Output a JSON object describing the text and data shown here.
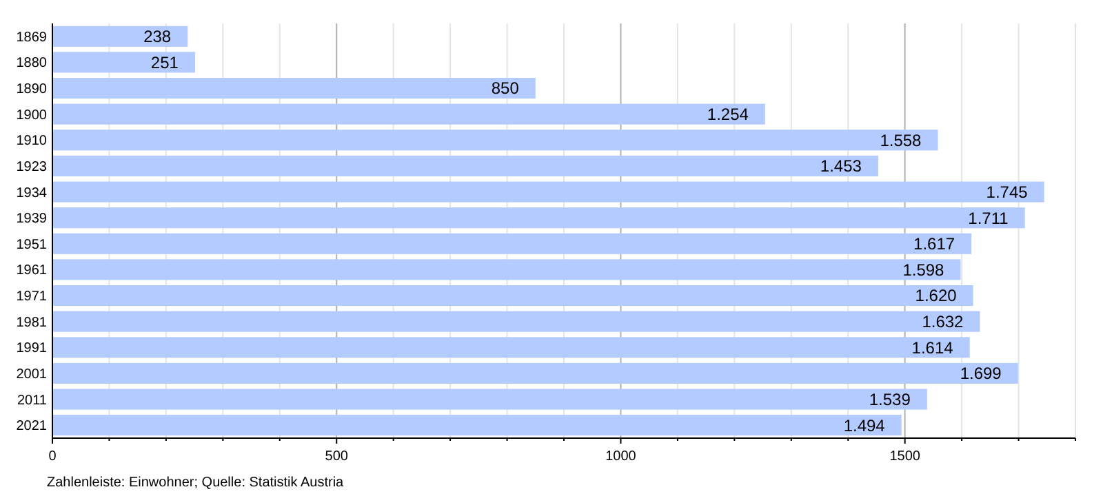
{
  "chart_data": {
    "type": "bar",
    "orientation": "horizontal",
    "categories": [
      "1869",
      "1880",
      "1890",
      "1900",
      "1910",
      "1923",
      "1934",
      "1939",
      "1951",
      "1961",
      "1971",
      "1981",
      "1991",
      "2001",
      "2011",
      "2021"
    ],
    "values": [
      238,
      251,
      850,
      1254,
      1558,
      1453,
      1745,
      1711,
      1617,
      1598,
      1620,
      1632,
      1614,
      1699,
      1539,
      1494
    ],
    "value_labels": [
      "238",
      "251",
      "850",
      "1.254",
      "1.558",
      "1.453",
      "1.745",
      "1.711",
      "1.617",
      "1.598",
      "1.620",
      "1.632",
      "1.614",
      "1.699",
      "1.539",
      "1.494"
    ],
    "color": "#b3cbff",
    "xlim": [
      0,
      1800
    ],
    "xticks": [
      0,
      {
        "value": 100,
        "label": null
      },
      {
        "value": 200,
        "label": null
      },
      {
        "value": 300,
        "label": null
      },
      {
        "value": 400,
        "label": null
      },
      500,
      {
        "value": 600,
        "label": null
      },
      {
        "value": 700,
        "label": null
      },
      {
        "value": 800,
        "label": null
      },
      {
        "value": 900,
        "label": null
      },
      1000,
      {
        "value": 1100,
        "label": null
      },
      {
        "value": 1200,
        "label": null
      },
      {
        "value": 1300,
        "label": null
      },
      {
        "value": 1400,
        "label": null
      },
      1500,
      {
        "value": 1600,
        "label": null
      },
      {
        "value": 1700,
        "label": null
      },
      {
        "value": 1800,
        "label": null
      }
    ],
    "grid": "x",
    "annotations": [
      "Zahlenleiste: Einwohner; Quelle: Statistik Austria"
    ]
  }
}
